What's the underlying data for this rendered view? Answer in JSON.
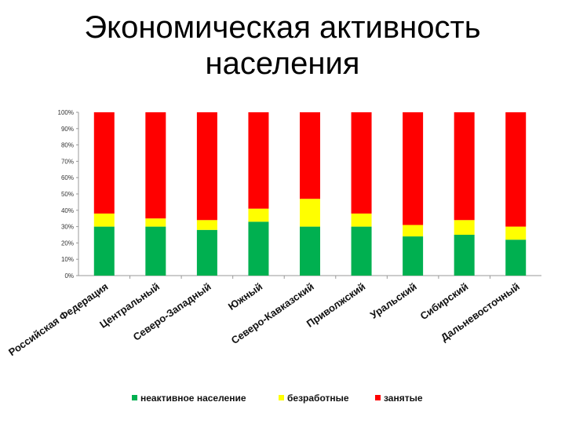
{
  "slide": {
    "title_line1": "Экономическая активность",
    "title_line2": "населения"
  },
  "chart_data": {
    "type": "bar",
    "stacked": true,
    "title": "",
    "xlabel": "",
    "ylabel": "",
    "ylim": [
      0,
      100
    ],
    "yticks": [
      "0%",
      "10%",
      "20%",
      "30%",
      "40%",
      "50%",
      "60%",
      "70%",
      "80%",
      "90%",
      "100%"
    ],
    "grid": false,
    "legend_position": "bottom",
    "categories": [
      "Российская Федерация",
      "Центральный",
      "Северо-Западный",
      "Южный",
      "Северо-Кавказский",
      "Приволжский",
      "Уральский",
      "Сибирский",
      "Дальневосточный"
    ],
    "series": [
      {
        "name": "неактивное население",
        "color": "#00b050",
        "values": [
          30,
          30,
          28,
          33,
          30,
          30,
          24,
          25,
          22
        ]
      },
      {
        "name": "безработные",
        "color": "#ffff00",
        "values": [
          8,
          5,
          6,
          8,
          17,
          8,
          7,
          9,
          8
        ]
      },
      {
        "name": "занятые",
        "color": "#ff0000",
        "values": [
          62,
          65,
          66,
          59,
          53,
          62,
          69,
          66,
          70
        ]
      }
    ]
  }
}
